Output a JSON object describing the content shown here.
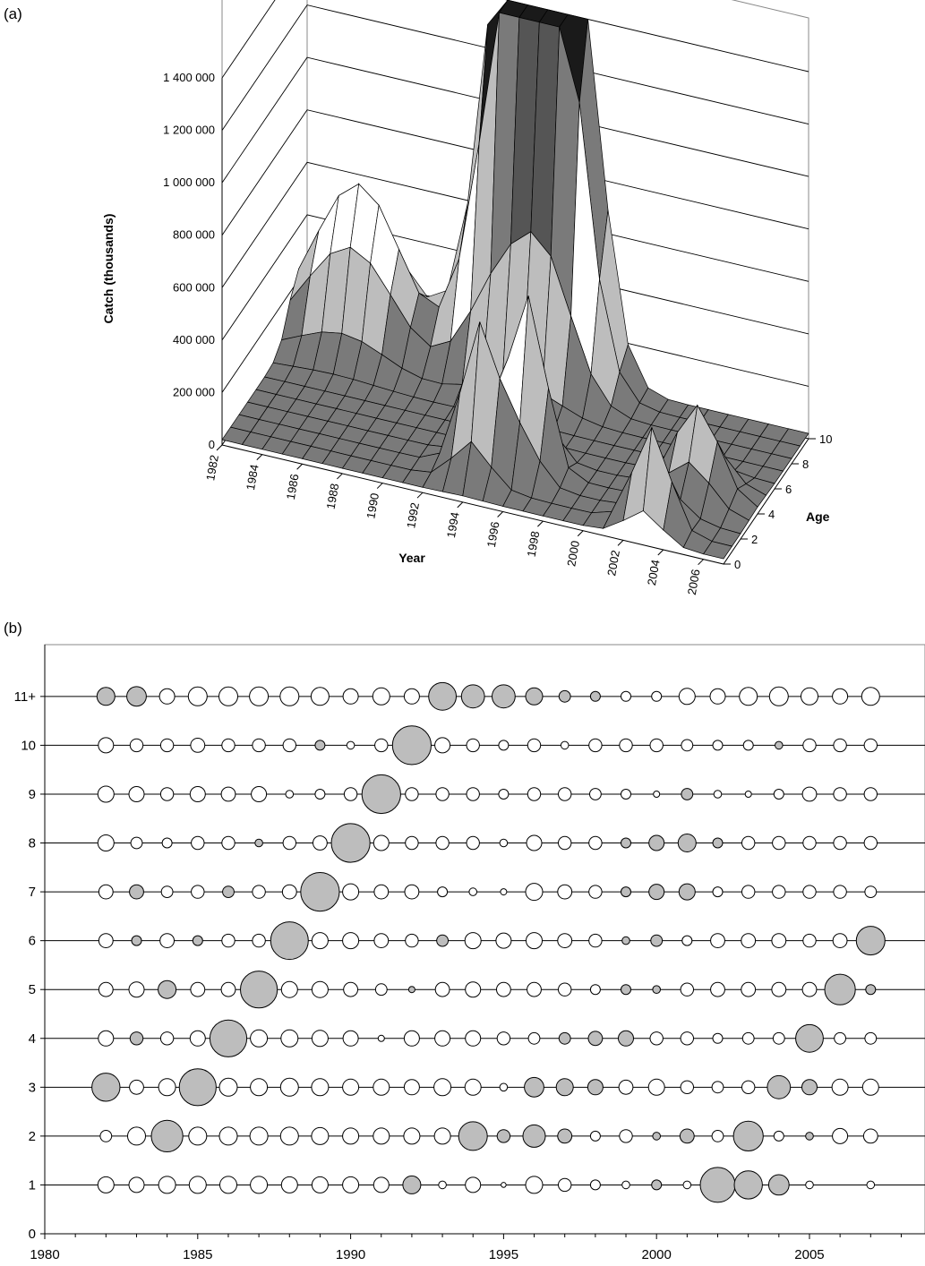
{
  "panel_a": {
    "label": "(a)"
  },
  "panel_b": {
    "label": "(b)"
  },
  "colors": {
    "surface_dark": "#1a1a1a",
    "surface_mid": "#555555",
    "surface_grey": "#7a7a7a",
    "surface_light": "#bdbdbd",
    "bubble_positive_fill": "#ffffff",
    "bubble_negative_fill": "#bdbdbd",
    "line": "#000000"
  },
  "chart_data": [
    {
      "type": "surface",
      "title": "",
      "ylabel": "Catch (thousands)",
      "xlabel": "Year",
      "zlabel": "Age",
      "zlim": [
        0,
        1400000
      ],
      "z_ticks": [
        "0",
        "200 000",
        "400 000",
        "600 000",
        "800 000",
        "1 000 000",
        "1 200 000",
        "1 400 000"
      ],
      "year_ticks": [
        "1982",
        "1984",
        "1986",
        "1988",
        "1990",
        "1992",
        "1994",
        "1996",
        "1998",
        "2000",
        "2002",
        "2004",
        "2006"
      ],
      "age_ticks": [
        "0",
        "2",
        "4",
        "6",
        "8",
        "10"
      ],
      "years": [
        1982,
        1983,
        1984,
        1985,
        1986,
        1987,
        1988,
        1989,
        1990,
        1991,
        1992,
        1993,
        1994,
        1995,
        1996,
        1997,
        1998,
        1999,
        2000,
        2001,
        2002,
        2003,
        2004,
        2005,
        2006,
        2007
      ],
      "ages": [
        0,
        1,
        2,
        3,
        4,
        5,
        6,
        7,
        8,
        9,
        10
      ],
      "peak_catches": [
        {
          "year": 1992,
          "age": 10,
          "value": 1400000
        },
        {
          "year": 1994,
          "age": 10,
          "value": 1380000
        },
        {
          "year": 1995,
          "age": 10,
          "value": 1420000
        },
        {
          "year": 1996,
          "age": 3,
          "value": 650000
        },
        {
          "year": 1994,
          "age": 2,
          "value": 560000
        },
        {
          "year": 2003,
          "age": 1,
          "value": 380000
        }
      ]
    },
    {
      "type": "scatter",
      "title": "",
      "xlabel": "",
      "ylabel": "",
      "xlim": [
        1980,
        2008
      ],
      "ylim": [
        0,
        12
      ],
      "x_ticks": [
        1980,
        1985,
        1990,
        1995,
        2000,
        2005
      ],
      "y_ticks": [
        "0",
        "1",
        "2",
        "3",
        "4",
        "5",
        "6",
        "7",
        "8",
        "9",
        "10",
        "11+"
      ],
      "years": [
        1982,
        1983,
        1984,
        1985,
        1986,
        1987,
        1988,
        1989,
        1990,
        1991,
        1992,
        1993,
        1994,
        1995,
        1996,
        1997,
        1998,
        1999,
        2000,
        2001,
        2002,
        2003,
        2004,
        2005,
        2006,
        2007
      ],
      "encoding": "bubble area = absolute residual; white = positive, grey = negative",
      "residuals": {
        "11": [
          -0.9,
          -1.1,
          0.6,
          1.0,
          1.0,
          1.0,
          1.0,
          0.9,
          0.6,
          0.8,
          0.6,
          -2.4,
          -1.6,
          -1.6,
          -0.8,
          -0.3,
          -0.2,
          0.2,
          0.2,
          0.7,
          0.6,
          0.9,
          1.0,
          0.8,
          0.6,
          0.9
        ],
        "10": [
          0.6,
          0.4,
          0.4,
          0.5,
          0.4,
          0.4,
          0.4,
          -0.2,
          0.1,
          0.4,
          -5.0,
          0.6,
          0.4,
          0.2,
          0.4,
          0.1,
          0.4,
          0.4,
          0.4,
          0.3,
          0.2,
          0.2,
          -0.1,
          0.4,
          0.4,
          0.4
        ],
        "9": [
          0.7,
          0.6,
          0.4,
          0.6,
          0.5,
          0.6,
          0.1,
          0.2,
          0.4,
          -5.0,
          0.4,
          0.4,
          0.4,
          0.2,
          0.4,
          0.4,
          0.3,
          0.2,
          0.05,
          -0.3,
          0.1,
          0.05,
          0.2,
          0.5,
          0.4,
          0.4
        ],
        "8": [
          0.7,
          0.3,
          0.2,
          0.4,
          0.4,
          -0.1,
          0.4,
          0.5,
          -5.0,
          0.6,
          0.4,
          0.4,
          0.4,
          0.1,
          0.6,
          0.4,
          0.4,
          -0.2,
          -0.6,
          -0.9,
          -0.2,
          0.4,
          0.4,
          0.4,
          0.4,
          0.4
        ],
        "7": [
          0.5,
          -0.5,
          0.3,
          0.4,
          -0.3,
          0.4,
          0.5,
          -5.0,
          0.7,
          0.5,
          0.5,
          0.2,
          0.1,
          0.05,
          0.8,
          0.5,
          0.4,
          -0.2,
          -0.6,
          -0.7,
          0.2,
          0.4,
          0.4,
          0.4,
          0.4,
          0.3
        ],
        "6": [
          0.5,
          -0.2,
          0.5,
          -0.2,
          0.4,
          0.4,
          -4.7,
          0.7,
          0.7,
          0.5,
          0.4,
          -0.3,
          0.7,
          0.6,
          0.7,
          0.5,
          0.4,
          -0.1,
          -0.3,
          0.2,
          0.5,
          0.5,
          0.5,
          0.4,
          0.5,
          -2.6
        ],
        "5": [
          0.5,
          0.6,
          -0.9,
          0.5,
          0.5,
          -4.5,
          0.7,
          0.7,
          0.5,
          0.3,
          -0.05,
          0.5,
          0.6,
          0.5,
          0.5,
          0.4,
          0.2,
          -0.2,
          -0.1,
          0.4,
          0.5,
          0.5,
          0.5,
          0.5,
          -3.0,
          -0.2
        ],
        "4": [
          0.6,
          -0.4,
          0.4,
          0.6,
          -4.5,
          0.8,
          0.8,
          0.7,
          0.6,
          0.05,
          0.6,
          0.6,
          0.6,
          0.4,
          0.3,
          -0.3,
          -0.5,
          -0.6,
          0.4,
          0.4,
          0.2,
          0.3,
          0.3,
          -2.4,
          0.3,
          0.3
        ],
        "3": [
          -2.5,
          0.5,
          0.8,
          -4.5,
          0.9,
          0.8,
          0.9,
          0.8,
          0.7,
          0.7,
          0.6,
          0.8,
          0.7,
          0.1,
          -1.1,
          -0.8,
          -0.6,
          0.5,
          0.7,
          0.4,
          0.3,
          0.4,
          -1.6,
          -0.6,
          0.7,
          0.7
        ],
        "2": [
          0.3,
          0.9,
          -3.2,
          0.9,
          0.9,
          0.9,
          0.9,
          0.8,
          0.7,
          0.7,
          0.7,
          0.7,
          -2.6,
          -0.4,
          -1.5,
          -0.5,
          0.2,
          0.4,
          -0.1,
          -0.5,
          0.3,
          -2.8,
          0.2,
          -0.1,
          0.6,
          0.5
        ],
        "1": [
          0.7,
          0.6,
          0.8,
          0.8,
          0.8,
          0.8,
          0.7,
          0.7,
          0.7,
          0.6,
          -0.9,
          0.1,
          0.6,
          0.02,
          0.8,
          0.4,
          0.2,
          0.1,
          -0.2,
          0.1,
          -4.0,
          -2.5,
          -1.2,
          0.1,
          0.0,
          0.1
        ]
      }
    }
  ]
}
